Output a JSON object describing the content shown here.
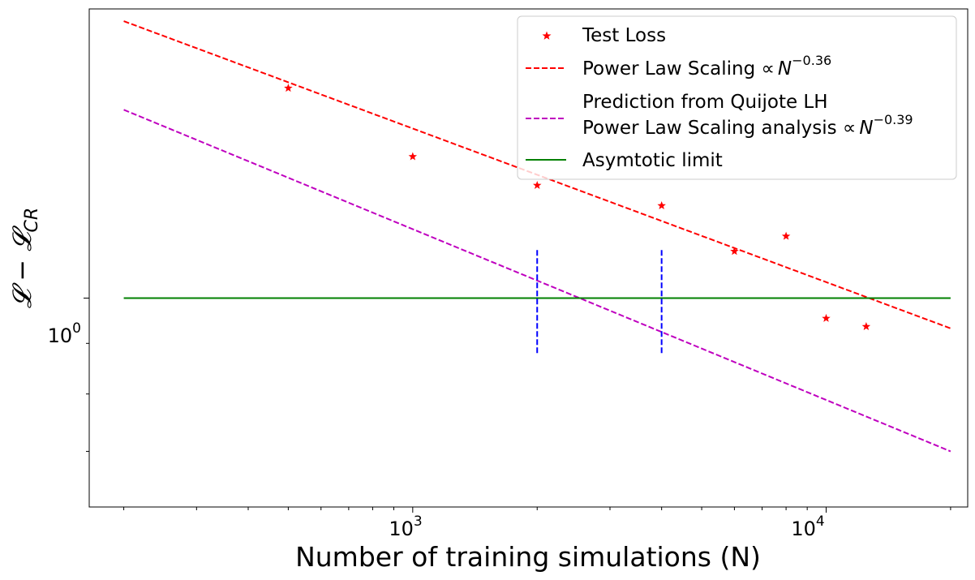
{
  "chart_data": {
    "type": "scatter",
    "xscale": "log",
    "yscale": "log",
    "xlim": [
      165,
      22000
    ],
    "ylim": [
      0.615,
      1.96
    ],
    "xlabel": "Number of training simulations (N)",
    "ylabel_parts": {
      "main": "𝓛 − 𝓛",
      "sub": "CR"
    },
    "x_major_ticks": [
      {
        "value": 1000,
        "base": "10",
        "exp": "3"
      },
      {
        "value": 10000,
        "base": "10",
        "exp": "4"
      }
    ],
    "y_major_ticks": [
      {
        "value": 1.0,
        "base": "10",
        "exp": "0"
      }
    ],
    "series": [
      {
        "name": "Test Loss",
        "kind": "points",
        "marker": "star",
        "color": "#ff0000",
        "x": [
          500,
          1000,
          2000,
          4000,
          6000,
          8000,
          10000,
          12500
        ],
        "y": [
          1.63,
          1.39,
          1.3,
          1.24,
          1.115,
          1.155,
          0.954,
          0.936
        ]
      },
      {
        "name": "Power Law Scaling ∝N^−0.36",
        "label_text": "Power Law Scaling ∝",
        "label_math": "N",
        "label_exp": "−0.36",
        "kind": "line",
        "style": "dashed",
        "color": "#ff0000",
        "x": [
          200,
          20000
        ],
        "y": [
          1.905,
          0.932
        ]
      },
      {
        "name": "Prediction from Quijote LH Power Law Scaling analysis ∝N^−0.39",
        "label_lines": [
          "Prediction from Quijote LH",
          "Power Law Scaling analysis ∝"
        ],
        "label_math": "N",
        "label_exp": "−0.39",
        "kind": "line",
        "style": "dashed",
        "color": "#bf00bf",
        "x": [
          200,
          20000
        ],
        "y": [
          1.55,
          0.7
        ]
      },
      {
        "name": "Asymtotic limit",
        "kind": "line",
        "style": "solid",
        "color": "#008000",
        "x": [
          200,
          20000
        ],
        "y": [
          1.0,
          1.0
        ]
      },
      {
        "name": "",
        "kind": "line",
        "style": "dashed",
        "color": "#0000ff",
        "x": [
          2000,
          2000
        ],
        "y": [
          0.88,
          1.12
        ]
      },
      {
        "name": "",
        "kind": "line",
        "style": "dashed",
        "color": "#0000ff",
        "x": [
          4000,
          4000
        ],
        "y": [
          0.88,
          1.12
        ]
      }
    ],
    "legend": {
      "position": "top-right",
      "entries": [
        {
          "label": "Test Loss"
        },
        {
          "label": "Power Law Scaling ∝",
          "math": "N",
          "exp": "−0.36"
        },
        {
          "label_line1": "Prediction from Quijote LH",
          "label_line2": "Power Law Scaling analysis ∝",
          "math": "N",
          "exp": "−0.39"
        },
        {
          "label": "Asymtotic limit"
        }
      ]
    }
  }
}
